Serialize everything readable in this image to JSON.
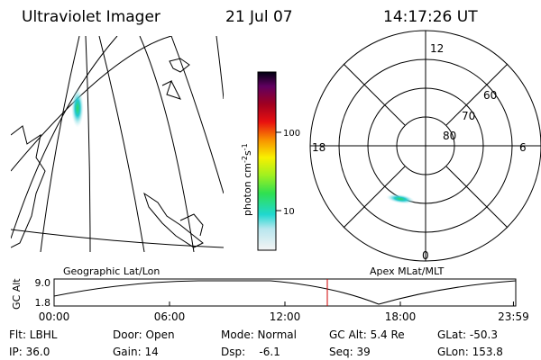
{
  "header": {
    "title": "Ultraviolet Imager",
    "date": "21 Jul 07",
    "time": "14:17:26 UT"
  },
  "colorbar": {
    "unit": "photon cm",
    "exp1": "-2",
    "unit2": "s",
    "exp2": "-1",
    "ticks": [
      "100",
      "10"
    ]
  },
  "polar": {
    "mlt_labels": [
      "12",
      "18",
      "6",
      "0"
    ],
    "lat_labels": [
      "60",
      "70",
      "80"
    ]
  },
  "panels": {
    "left": "Geographic Lat/Lon",
    "right": "Apex MLat/MLT"
  },
  "altplot": {
    "ylabel": "GC Alt",
    "yticks": [
      "9.0",
      "1.8"
    ],
    "xticks": [
      "00:00",
      "06:00",
      "12:00",
      "18:00",
      "23:59"
    ]
  },
  "info": {
    "rows": [
      [
        "Flt: LBHL",
        "Door: Open",
        "Mode: Normal",
        "GC Alt: 5.4 Re",
        "GLat: -50.3"
      ],
      [
        "IP: 36.0",
        "Gain: 14",
        "Dsp:    -6.1",
        "Seq: 39",
        "GLon: 153.8"
      ]
    ]
  }
}
